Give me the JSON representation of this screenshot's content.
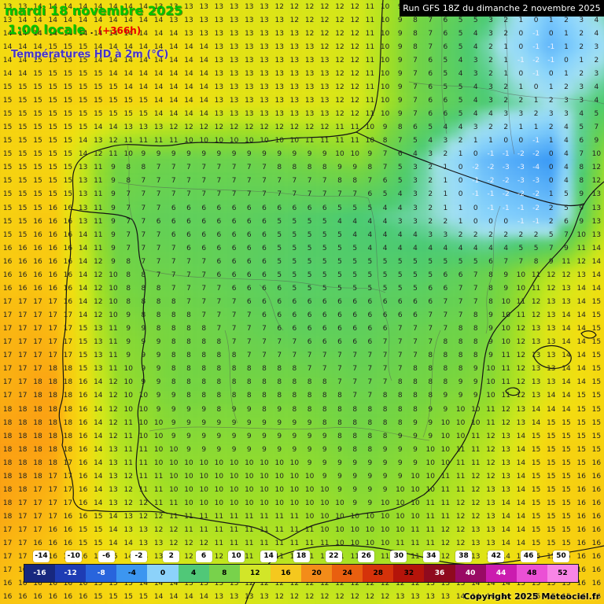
{
  "header": {
    "date_line": "mardi 18 novembre 2025",
    "time_line": "1:00 locale",
    "time_sep": ".",
    "forecast_offset": "(+366h)",
    "subtitle": "Températures HD à 2m (°C)"
  },
  "run_banner": {
    "text": "Run GFS 18Z du dimanche 2 novembre 2025"
  },
  "copyright": "Copyright 2025 Meteociel.fr",
  "colors": {
    "header_green": "#00c400",
    "offset_red": "#e60000",
    "subtitle_blue": "#4632c8",
    "banner_bg": "#000000",
    "banner_text": "#ffffff"
  },
  "legend": {
    "upper_labels": [
      -14,
      -10,
      -6,
      -2,
      2,
      6,
      10,
      14,
      18,
      22,
      26,
      30,
      34,
      38,
      42,
      46,
      50
    ],
    "lower_labels": [
      -16,
      -12,
      -8,
      -4,
      0,
      4,
      8,
      12,
      16,
      20,
      24,
      28,
      32,
      36,
      40,
      44,
      48,
      52
    ],
    "min": -18,
    "max": 54,
    "stops": [
      [
        -18,
        "#141e64"
      ],
      [
        -12,
        "#1e3cb4"
      ],
      [
        -8,
        "#2864dc"
      ],
      [
        -4,
        "#3c96f0"
      ],
      [
        -2,
        "#64b4f5"
      ],
      [
        0,
        "#8cd2fa"
      ],
      [
        2,
        "#a8e0f0"
      ],
      [
        4,
        "#50c878"
      ],
      [
        8,
        "#78d24b"
      ],
      [
        10,
        "#a0dc32"
      ],
      [
        12,
        "#d2e628"
      ],
      [
        14,
        "#f0dc1e"
      ],
      [
        16,
        "#f5c81e"
      ],
      [
        18,
        "#f5a01e"
      ],
      [
        22,
        "#f07814"
      ],
      [
        26,
        "#e1460a"
      ],
      [
        30,
        "#c81e0a"
      ],
      [
        34,
        "#a00a0a"
      ],
      [
        38,
        "#7d0a32"
      ],
      [
        42,
        "#b40a96"
      ],
      [
        46,
        "#e12cc8"
      ],
      [
        50,
        "#f573e1"
      ],
      [
        54,
        "#fa96eb"
      ]
    ]
  },
  "field": {
    "cols": 11,
    "rows": 12,
    "values": [
      [
        13,
        14,
        14,
        13,
        13,
        12,
        12,
        8,
        5,
        0,
        5
      ],
      [
        14,
        15,
        14,
        14,
        13,
        13,
        12,
        7,
        3,
        -2,
        2
      ],
      [
        15,
        15,
        15,
        14,
        13,
        13,
        12,
        7,
        4,
        2,
        5
      ],
      [
        15,
        15,
        8,
        7,
        7,
        8,
        9,
        3,
        -2,
        -4,
        12
      ],
      [
        15,
        16,
        7,
        6,
        6,
        5,
        4,
        3,
        0,
        -1,
        13
      ],
      [
        16,
        16,
        8,
        7,
        6,
        5,
        5,
        5,
        7,
        11,
        14
      ],
      [
        17,
        17,
        9,
        8,
        7,
        6,
        6,
        7,
        8,
        13,
        15
      ],
      [
        17,
        18,
        10,
        8,
        8,
        8,
        7,
        8,
        9,
        13,
        15
      ],
      [
        18,
        18,
        11,
        9,
        9,
        9,
        8,
        9,
        11,
        15,
        15
      ],
      [
        18,
        17,
        12,
        10,
        10,
        10,
        9,
        10,
        12,
        15,
        16
      ],
      [
        17,
        16,
        14,
        12,
        11,
        11,
        10,
        11,
        13,
        15,
        16
      ],
      [
        16,
        16,
        15,
        14,
        13,
        12,
        12,
        13,
        14,
        15,
        16
      ]
    ]
  }
}
